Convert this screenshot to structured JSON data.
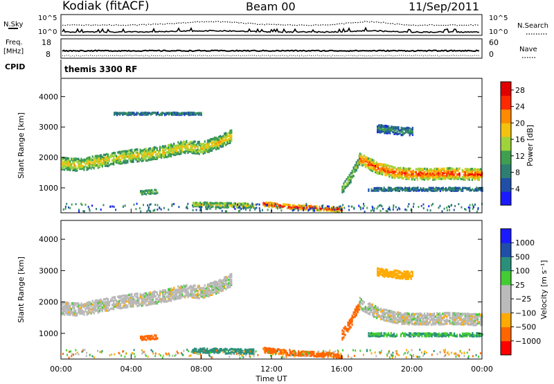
{
  "header": {
    "title": "Kodiak (fitACF)",
    "beam": "Beam 00",
    "date": "11/Sep/2011"
  },
  "strip_labels": {
    "nsky": "N.Sky",
    "nsearch": "N.Search",
    "freq_line1": "Freq.",
    "freq_line2": "[MHz]",
    "nave": "Nave",
    "cpid": "CPID",
    "cpid_value": "themis 3300 RF",
    "noise_ticks_left": [
      "10^5",
      "10^0"
    ],
    "noise_ticks_right": [
      "10^5",
      "10^0"
    ],
    "freq_ticks_left": [
      "18",
      "8"
    ],
    "freq_ticks_right": [
      "60",
      "0"
    ]
  },
  "colors": {
    "power_scale": [
      "#1a1aff",
      "#1f4fa8",
      "#2e7f72",
      "#3f9f4f",
      "#9fd33a",
      "#f2c20e",
      "#ff8a00",
      "#ff2a00",
      "#e00000"
    ],
    "velocity_scale": [
      "#ff0000",
      "#ff6600",
      "#ffaa00",
      "#bbbbbb",
      "#bbbbbb",
      "#44cc33",
      "#2a8f7a",
      "#1f4fa8",
      "#1a1aff"
    ],
    "ground_scatter": "#b8b8b8"
  },
  "chart_data": [
    {
      "type": "heatmap",
      "panel": "power",
      "xlabel": "",
      "ylabel": "Slant Range [km]",
      "xlim": [
        "00:00",
        "24:00"
      ],
      "ylim": [
        180,
        4600
      ],
      "y_ticks": [
        "1000",
        "2000",
        "3000",
        "4000"
      ],
      "colorbar": {
        "label": "Power [dB]",
        "ticks": [
          "4",
          "8",
          "12",
          "16",
          "20",
          "24",
          "28"
        ],
        "range": [
          0,
          30
        ]
      },
      "bands": [
        {
          "start": "00:00",
          "end": "09:45",
          "range_km": [
            [
              0,
              1850
            ],
            [
              1.0,
              1800
            ],
            [
              2.0,
              1900
            ],
            [
              3.0,
              2000
            ],
            [
              4.0,
              2100
            ],
            [
              5.0,
              2150
            ],
            [
              6.0,
              2250
            ],
            [
              7.0,
              2400
            ],
            [
              8.0,
              2350
            ],
            [
              9.0,
              2550
            ],
            [
              9.7,
              2750
            ]
          ],
          "width_km": 420,
          "power_db": 16
        },
        {
          "start": "04:30",
          "end": "05:30",
          "range_km": [
            [
              4.5,
              880
            ],
            [
              5.5,
              930
            ]
          ],
          "width_km": 140,
          "power_db": 13
        },
        {
          "start": "03:00",
          "end": "08:00",
          "range_km": [
            [
              3.0,
              3480
            ],
            [
              8.0,
              3480
            ]
          ],
          "width_km": 80,
          "power_db": 8
        },
        {
          "start": "07:30",
          "end": "11:00",
          "range_km": [
            [
              7.5,
              500
            ],
            [
              9.0,
              480
            ],
            [
              11.0,
              460
            ]
          ],
          "width_km": 160,
          "power_db": 16
        },
        {
          "start": "11:30",
          "end": "16:00",
          "range_km": [
            [
              11.5,
              520
            ],
            [
              13.0,
              420
            ],
            [
              14.5,
              380
            ],
            [
              16.0,
              330
            ]
          ],
          "width_km": 160,
          "power_db": 24
        },
        {
          "start": "16:00",
          "end": "17:00",
          "range_km": [
            [
              16.0,
              1000
            ],
            [
              16.5,
              1400
            ],
            [
              17.0,
              2000
            ]
          ],
          "width_km": 320,
          "power_db": 14
        },
        {
          "start": "17:00",
          "end": "24:00",
          "range_km": [
            [
              17.0,
              2000
            ],
            [
              18.0,
              1700
            ],
            [
              19.0,
              1550
            ],
            [
              20.0,
              1500
            ],
            [
              21.0,
              1500
            ],
            [
              22.0,
              1520
            ],
            [
              23.0,
              1500
            ],
            [
              24.0,
              1480
            ]
          ],
          "width_km": 380,
          "power_db": 22
        },
        {
          "start": "17:30",
          "end": "24:00",
          "range_km": [
            [
              17.5,
              1000
            ],
            [
              24.0,
              1000
            ]
          ],
          "width_km": 120,
          "power_db": 8
        },
        {
          "start": "18:00",
          "end": "20:00",
          "range_km": [
            [
              18.0,
              3000
            ],
            [
              19.5,
              2900
            ]
          ],
          "width_km": 260,
          "power_db": 8
        }
      ]
    },
    {
      "type": "heatmap",
      "panel": "velocity",
      "xlabel": "Time UT",
      "ylabel": "Slant Range [km]",
      "xlim": [
        "00:00",
        "24:00"
      ],
      "ylim": [
        180,
        4600
      ],
      "x_ticks": [
        "00:00",
        "04:00",
        "08:00",
        "12:00",
        "16:00",
        "20:00",
        "00:00"
      ],
      "y_ticks": [
        "1000",
        "2000",
        "3000",
        "4000"
      ],
      "colorbar": {
        "label": "Velocity [m s⁻¹]",
        "ticks": [
          "1000",
          "500",
          "100",
          "25",
          "−25",
          "−100",
          "−500",
          "−1000"
        ]
      },
      "bands": [
        {
          "start": "00:00",
          "end": "09:45",
          "range_km": [
            [
              0,
              1850
            ],
            [
              1.0,
              1800
            ],
            [
              2.0,
              1900
            ],
            [
              3.0,
              2000
            ],
            [
              4.0,
              2100
            ],
            [
              5.0,
              2150
            ],
            [
              6.0,
              2250
            ],
            [
              7.0,
              2400
            ],
            [
              8.0,
              2350
            ],
            [
              9.0,
              2550
            ],
            [
              9.7,
              2750
            ]
          ],
          "width_km": 420,
          "velocity": 0
        },
        {
          "start": "04:30",
          "end": "05:30",
          "range_km": [
            [
              4.5,
              880
            ],
            [
              5.5,
              930
            ]
          ],
          "width_km": 140,
          "velocity": -300
        },
        {
          "start": "07:30",
          "end": "11:00",
          "range_km": [
            [
              7.5,
              500
            ],
            [
              9.0,
              480
            ],
            [
              11.0,
              460
            ]
          ],
          "width_km": 160,
          "velocity": 150
        },
        {
          "start": "11:30",
          "end": "16:00",
          "range_km": [
            [
              11.5,
              520
            ],
            [
              13.0,
              420
            ],
            [
              14.5,
              380
            ],
            [
              16.0,
              330
            ]
          ],
          "width_km": 160,
          "velocity": -200
        },
        {
          "start": "16:00",
          "end": "17:00",
          "range_km": [
            [
              16.0,
              1000
            ],
            [
              16.5,
              1400
            ],
            [
              17.0,
              2000
            ]
          ],
          "width_km": 320,
          "velocity": -150
        },
        {
          "start": "17:00",
          "end": "24:00",
          "range_km": [
            [
              17.0,
              2000
            ],
            [
              18.0,
              1700
            ],
            [
              19.0,
              1550
            ],
            [
              20.0,
              1500
            ],
            [
              21.0,
              1500
            ],
            [
              22.0,
              1520
            ],
            [
              23.0,
              1500
            ],
            [
              24.0,
              1480
            ]
          ],
          "width_km": 380,
          "velocity": 0
        },
        {
          "start": "17:30",
          "end": "24:00",
          "range_km": [
            [
              17.5,
              1000
            ],
            [
              24.0,
              1000
            ]
          ],
          "width_km": 120,
          "velocity": 100
        },
        {
          "start": "18:00",
          "end": "20:00",
          "range_km": [
            [
              18.0,
              3000
            ],
            [
              19.5,
              2900
            ]
          ],
          "width_km": 260,
          "velocity": -60
        }
      ]
    }
  ]
}
